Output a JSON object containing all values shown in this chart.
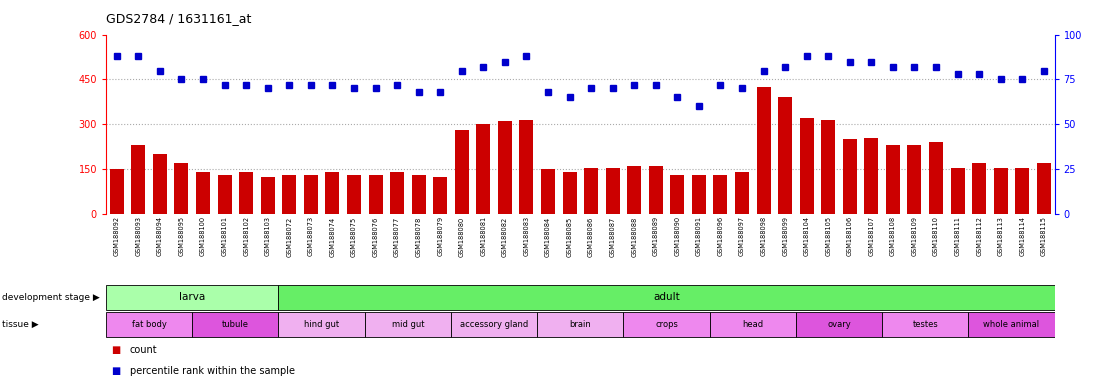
{
  "title": "GDS2784 / 1631161_at",
  "gsm_labels": [
    "GSM188092",
    "GSM188093",
    "GSM188094",
    "GSM188095",
    "GSM188100",
    "GSM188101",
    "GSM188102",
    "GSM188103",
    "GSM188072",
    "GSM188073",
    "GSM188074",
    "GSM188075",
    "GSM188076",
    "GSM188077",
    "GSM188078",
    "GSM188079",
    "GSM188080",
    "GSM188081",
    "GSM188082",
    "GSM188083",
    "GSM188084",
    "GSM188085",
    "GSM188086",
    "GSM188087",
    "GSM188088",
    "GSM188089",
    "GSM188090",
    "GSM188091",
    "GSM188096",
    "GSM188097",
    "GSM188098",
    "GSM188099",
    "GSM188104",
    "GSM188105",
    "GSM188106",
    "GSM188107",
    "GSM188108",
    "GSM188109",
    "GSM188110",
    "GSM188111",
    "GSM188112",
    "GSM188113",
    "GSM188114",
    "GSM188115"
  ],
  "count_values": [
    150,
    230,
    200,
    170,
    140,
    130,
    140,
    125,
    130,
    130,
    140,
    130,
    130,
    140,
    130,
    125,
    280,
    300,
    310,
    315,
    150,
    140,
    155,
    155,
    160,
    160,
    130,
    130,
    130,
    140,
    425,
    390,
    320,
    315,
    250,
    255,
    230,
    230,
    240,
    155,
    170,
    155,
    155,
    170
  ],
  "percentile_values": [
    88,
    88,
    80,
    75,
    75,
    72,
    72,
    70,
    72,
    72,
    72,
    70,
    70,
    72,
    68,
    68,
    80,
    82,
    85,
    88,
    68,
    65,
    70,
    70,
    72,
    72,
    65,
    60,
    72,
    70,
    80,
    82,
    88,
    88,
    85,
    85,
    82,
    82,
    82,
    78,
    78,
    75,
    75,
    80
  ],
  "ylim_left": [
    0,
    600
  ],
  "ylim_right": [
    0,
    100
  ],
  "yticks_left": [
    0,
    150,
    300,
    450,
    600
  ],
  "yticks_right": [
    0,
    25,
    50,
    75,
    100
  ],
  "bar_color": "#cc0000",
  "dot_color": "#0000cc",
  "gridline_color": "#aaaaaa",
  "dev_stages": [
    {
      "label": "larva",
      "start": 0,
      "end": 8,
      "color": "#aaffaa"
    },
    {
      "label": "adult",
      "start": 8,
      "end": 44,
      "color": "#66ee66"
    }
  ],
  "tissues": [
    {
      "label": "fat body",
      "start": 0,
      "end": 4,
      "color": "#ee88ee"
    },
    {
      "label": "tubule",
      "start": 4,
      "end": 8,
      "color": "#dd55dd"
    },
    {
      "label": "hind gut",
      "start": 8,
      "end": 12,
      "color": "#f0b0f0"
    },
    {
      "label": "mid gut",
      "start": 12,
      "end": 16,
      "color": "#f0b0f0"
    },
    {
      "label": "accessory gland",
      "start": 16,
      "end": 20,
      "color": "#f0b0f0"
    },
    {
      "label": "brain",
      "start": 20,
      "end": 24,
      "color": "#f0b0f0"
    },
    {
      "label": "crops",
      "start": 24,
      "end": 28,
      "color": "#ee88ee"
    },
    {
      "label": "head",
      "start": 28,
      "end": 32,
      "color": "#ee88ee"
    },
    {
      "label": "ovary",
      "start": 32,
      "end": 36,
      "color": "#dd55dd"
    },
    {
      "label": "testes",
      "start": 36,
      "end": 40,
      "color": "#ee88ee"
    },
    {
      "label": "whole animal",
      "start": 40,
      "end": 44,
      "color": "#dd55dd"
    }
  ],
  "bg_color": "#ffffff",
  "xticklabel_bg": "#dddddd"
}
